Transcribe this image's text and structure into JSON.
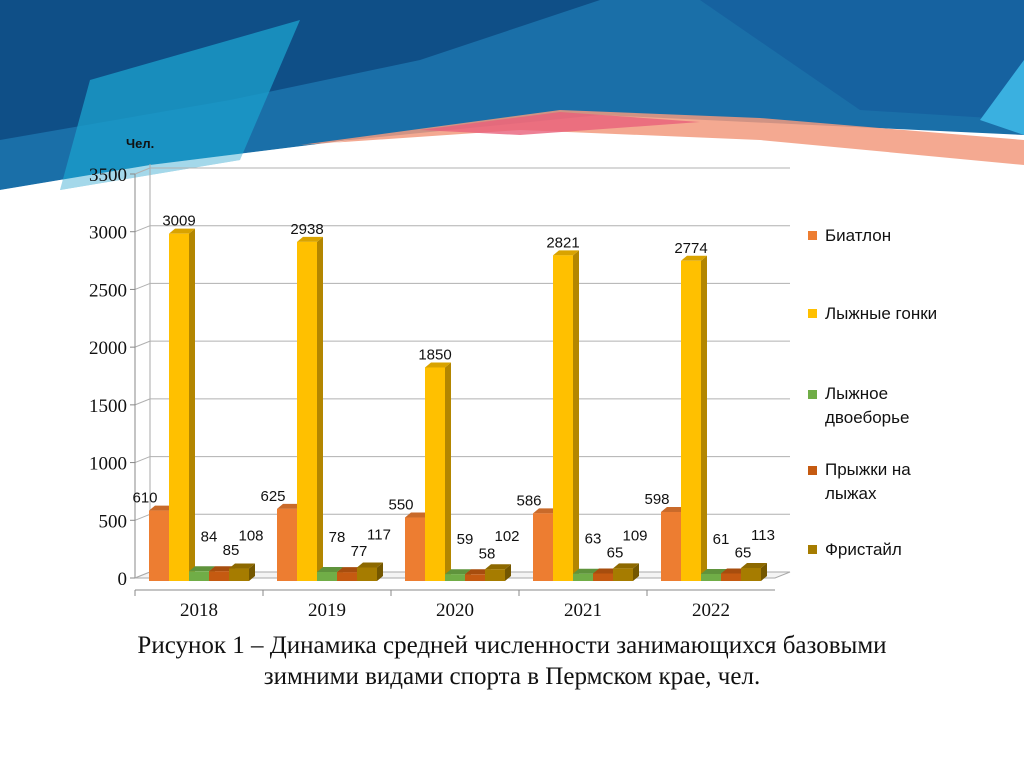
{
  "chart_data": {
    "type": "bar",
    "title": "",
    "ylabel": "Чел.",
    "xlabel": "",
    "ylim": [
      0,
      3500
    ],
    "yticks": [
      0,
      500,
      1000,
      1500,
      2000,
      2500,
      3000,
      3500
    ],
    "grid": true,
    "legend_position": "right",
    "categories": [
      "2018",
      "2019",
      "2020",
      "2021",
      "2022"
    ],
    "series": [
      {
        "name": "Биатлон",
        "color": "#ED7D31",
        "values": [
          610,
          625,
          550,
          586,
          598
        ]
      },
      {
        "name": "Лыжные гонки",
        "color": "#FFC000",
        "values": [
          3009,
          2938,
          1850,
          2821,
          2774
        ]
      },
      {
        "name": "Лыжное двоеборье",
        "color": "#70AD47",
        "values": [
          84,
          78,
          59,
          63,
          61
        ]
      },
      {
        "name": "Прыжки на лыжах",
        "color": "#C55A11",
        "values": [
          85,
          77,
          58,
          65,
          65
        ]
      },
      {
        "name": "Фристайл",
        "color": "#A67C00",
        "values": [
          108,
          117,
          102,
          109,
          113
        ]
      }
    ]
  },
  "legend": [
    "Биатлон",
    "Лыжные гонки",
    "Лыжное двоеборье",
    "Прыжки на лыжах",
    "Фристайл"
  ],
  "caption": {
    "line1": "Рисунок 1 – Динамика средней численности занимающихся базовыми",
    "line2": "зимними видами спорта в Пермском крае, чел."
  }
}
